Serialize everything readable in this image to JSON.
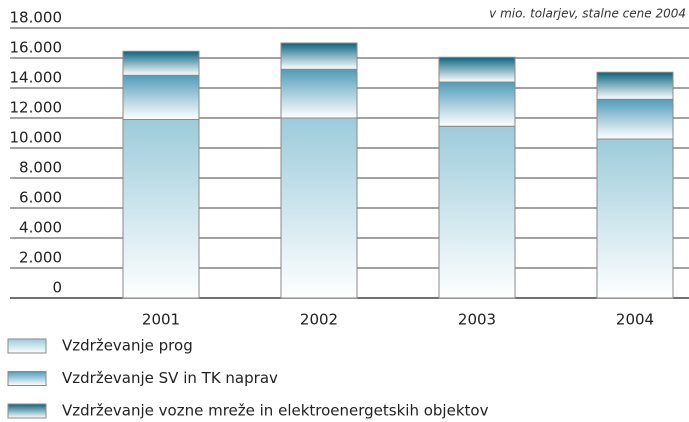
{
  "chart_data": {
    "type": "stacked_bar",
    "subtitle": "v mio. tolarjev, stalne cene 2004",
    "categories": [
      "2001",
      "2002",
      "2003",
      "2004"
    ],
    "series": [
      {
        "name": "Vzdrževanje prog",
        "color": "#9ccbdb",
        "values": [
          11900,
          12000,
          11450,
          10600
        ]
      },
      {
        "name": "Vzdrževanje SV in TK naprav",
        "color": "#4f9cb9",
        "values": [
          2950,
          3250,
          2950,
          2650
        ]
      },
      {
        "name": "Vzdrževanje vozne mreže in elektroenergetskih objektov",
        "color": "#0b6580",
        "values": [
          1600,
          1750,
          1650,
          1800
        ]
      }
    ],
    "ylim": [
      0,
      18000
    ],
    "yticks": [
      0,
      {
        "value": 2000,
        "label": "2.000"
      },
      {
        "value": 4000,
        "label": "4.000"
      },
      {
        "value": 6000,
        "label": "6.000"
      },
      {
        "value": 8000,
        "label": "8.000"
      },
      {
        "value": 10000,
        "label": "10.000"
      },
      {
        "value": 12000,
        "label": "12.000"
      },
      {
        "value": 14000,
        "label": "14.000"
      },
      {
        "value": 16000,
        "label": "16.000"
      },
      {
        "value": 18000,
        "label": "18.000"
      }
    ],
    "grid": true
  }
}
